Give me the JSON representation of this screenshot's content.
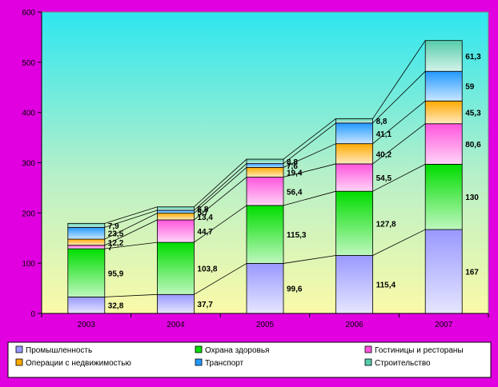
{
  "chart_data": {
    "type": "bar",
    "stacked": true,
    "categories": [
      "2003",
      "2004",
      "2005",
      "2006",
      "2007"
    ],
    "ylim": [
      0,
      600
    ],
    "yticks": [
      0,
      100,
      200,
      300,
      400,
      500,
      600
    ],
    "grid": false,
    "legend_position": "bottom",
    "series": [
      {
        "name": "Промышленность",
        "color": "#9999ff",
        "values": [
          32.8,
          37.7,
          99.6,
          115.4,
          167
        ],
        "labels": [
          "32,8",
          "37,7",
          "99,6",
          "115,4",
          "167"
        ]
      },
      {
        "name": "Охрана здоровья",
        "color": "#00dd00",
        "values": [
          95.9,
          103.8,
          115.3,
          127.8,
          130
        ],
        "labels": [
          "95,9",
          "103,8",
          "115,3",
          "127,8",
          "130"
        ]
      },
      {
        "name": "Гостиницы и рестораны",
        "color": "#ff55dd",
        "values": [
          7,
          44.7,
          56.4,
          54.5,
          80.6
        ],
        "labels": [
          "7",
          "44,7",
          "56,4",
          "54,5",
          "80,6"
        ]
      },
      {
        "name": "Операции с недвижимостью",
        "color": "#ffaa00",
        "values": [
          12.2,
          13.4,
          19.4,
          40.2,
          45.3
        ],
        "labels": [
          "12,2",
          "13,4",
          "19,4",
          "40,2",
          "45,3"
        ]
      },
      {
        "name": "Транспорт",
        "color": "#2299ff",
        "values": [
          23.5,
          5.7,
          7.6,
          41.1,
          59
        ],
        "labels": [
          "23,5",
          "5,7",
          "7,6",
          "41,1",
          "59"
        ]
      },
      {
        "name": "Строительство",
        "color": "#55ccaa",
        "values": [
          7.9,
          6.8,
          8.8,
          8.8,
          61.3
        ],
        "labels": [
          "7,9",
          "6,8",
          "8,8",
          "8,8",
          "61,3"
        ]
      }
    ]
  }
}
